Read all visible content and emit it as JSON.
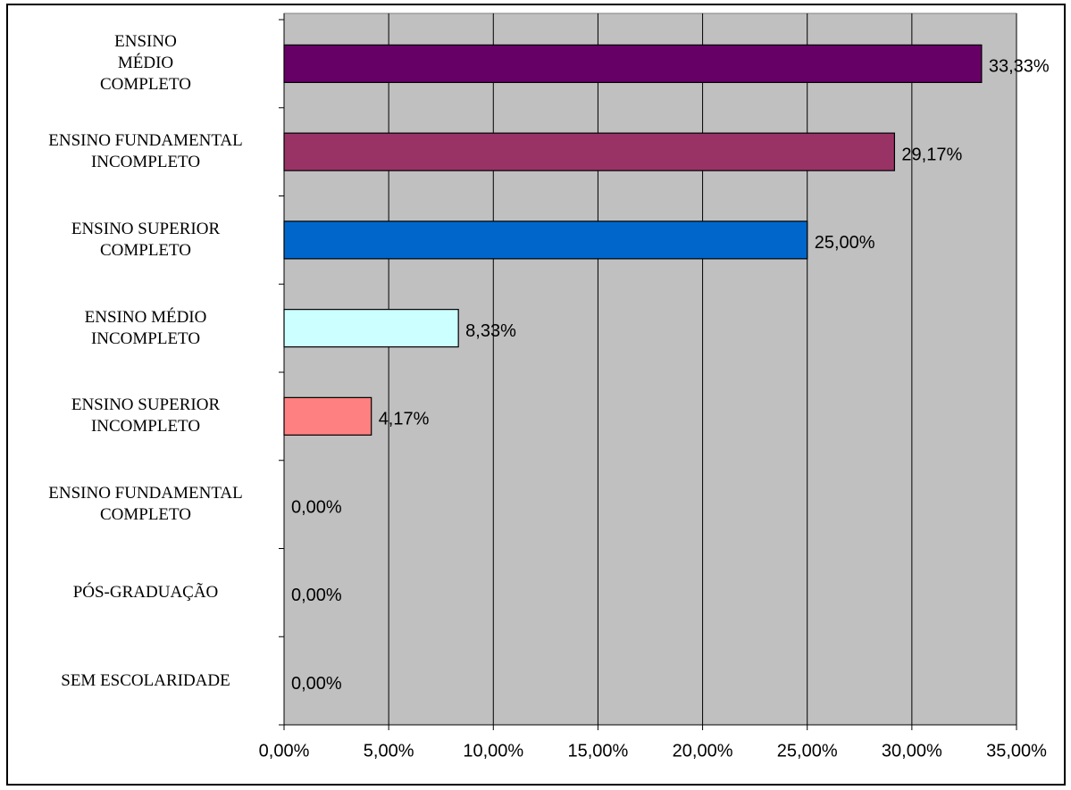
{
  "chart_data": {
    "type": "barh",
    "categories": [
      "ENSINO\nMÉDIO\nCOMPLETO",
      "ENSINO FUNDAMENTAL\nINCOMPLETO",
      "ENSINO SUPERIOR\nCOMPLETO",
      "ENSINO MÉDIO\nINCOMPLETO",
      "ENSINO SUPERIOR\nINCOMPLETO",
      "ENSINO FUNDAMENTAL\nCOMPLETO",
      "PÓS-GRADUAÇÃO",
      "SEM ESCOLARIDADE"
    ],
    "values": [
      33.33,
      29.17,
      25.0,
      8.33,
      4.17,
      0,
      0,
      0
    ],
    "value_labels": [
      "33,33%",
      "29,17%",
      "25,00%",
      "8,33%",
      "4,17%",
      "0,00%",
      "0,00%",
      "0,00%"
    ],
    "colors": [
      "#660066",
      "#993366",
      "#0066cc",
      "#ccffff",
      "#ff8080",
      "#c0c0c0",
      "#c0c0c0",
      "#c0c0c0"
    ],
    "xlim": [
      0,
      35
    ],
    "xticks": [
      {
        "value": 0,
        "label": "0,00%"
      },
      {
        "value": 5,
        "label": "5,00%"
      },
      {
        "value": 10,
        "label": "10,00%"
      },
      {
        "value": 15,
        "label": "15,00%"
      },
      {
        "value": 20,
        "label": "20,00%"
      },
      {
        "value": 25,
        "label": "25,00%"
      },
      {
        "value": 30,
        "label": "30,00%"
      },
      {
        "value": 35,
        "label": "35,00%"
      }
    ],
    "grid": true
  }
}
